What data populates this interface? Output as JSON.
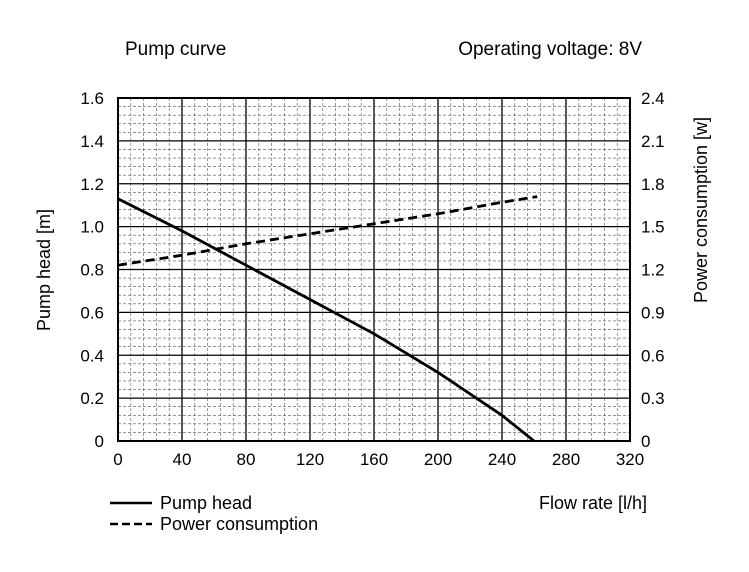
{
  "chart_data": {
    "type": "line",
    "title": "Pump curve",
    "subtitle": "Operating voltage: 8V",
    "xlabel": "Flow rate [l/h]",
    "ylabel_left": "Pump head [m]",
    "ylabel_right": "Power consumption [w]",
    "xlim": [
      0,
      320
    ],
    "ylim_left": [
      0,
      1.6
    ],
    "ylim_right": [
      0,
      2.4
    ],
    "x_ticks": [
      "0",
      "40",
      "80",
      "120",
      "160",
      "200",
      "240",
      "280",
      "320"
    ],
    "y_left_ticks": [
      "0",
      "0.2",
      "0.4",
      "0.6",
      "0.8",
      "1.0",
      "1.2",
      "1.4",
      "1.6"
    ],
    "y_right_ticks": [
      "0",
      "0.3",
      "0.6",
      "0.9",
      "1.2",
      "1.5",
      "1.8",
      "2.1",
      "2.4"
    ],
    "grid": true,
    "legend_position": "bottom-left",
    "series": [
      {
        "name": "Pump head",
        "axis": "left",
        "style": "solid",
        "color": "#000000",
        "x": [
          0,
          40,
          80,
          120,
          160,
          200,
          240,
          260
        ],
        "y": [
          1.13,
          0.98,
          0.82,
          0.66,
          0.5,
          0.32,
          0.12,
          0.0
        ]
      },
      {
        "name": "Power consumption",
        "axis": "right",
        "style": "dashed",
        "color": "#000000",
        "x": [
          0,
          40,
          80,
          120,
          160,
          200,
          240,
          262
        ],
        "y": [
          1.23,
          1.3,
          1.38,
          1.45,
          1.52,
          1.59,
          1.67,
          1.71
        ]
      }
    ]
  }
}
